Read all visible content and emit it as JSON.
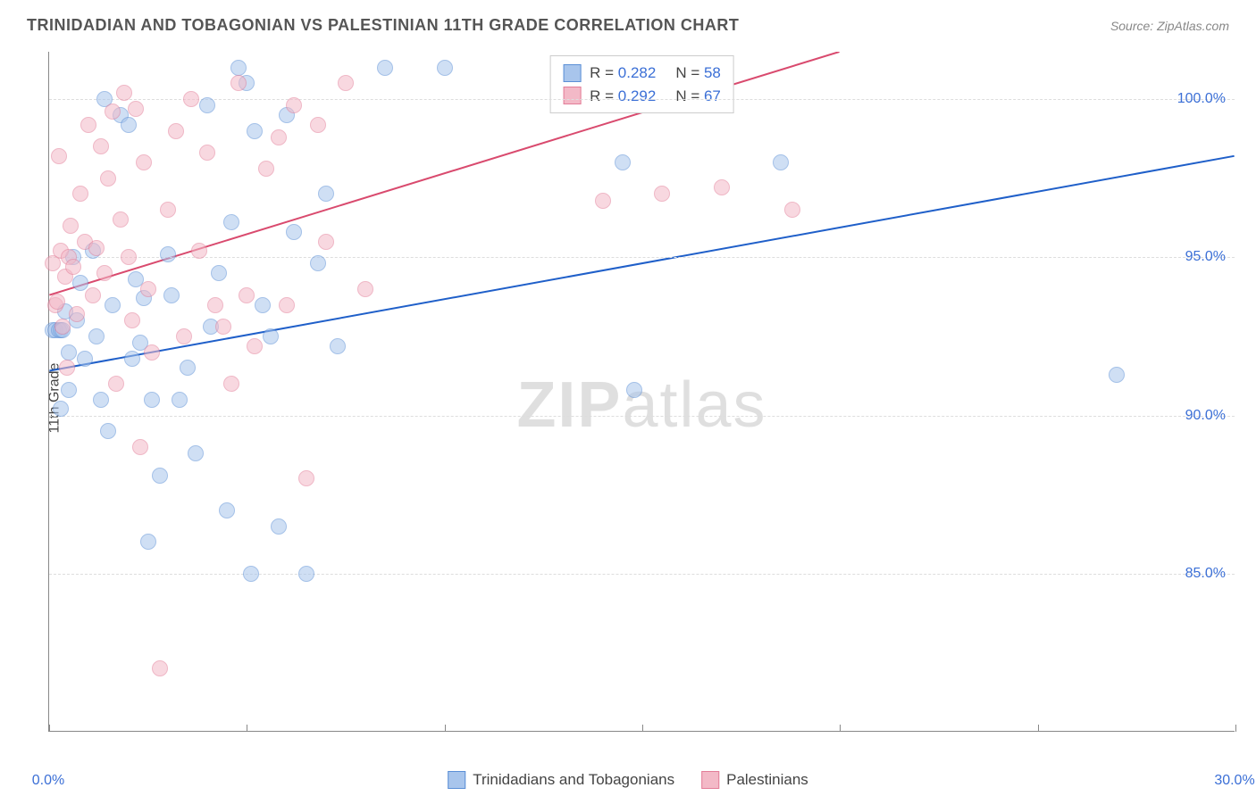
{
  "title": "TRINIDADIAN AND TOBAGONIAN VS PALESTINIAN 11TH GRADE CORRELATION CHART",
  "source": "Source: ZipAtlas.com",
  "ylabel": "11th Grade",
  "watermark_bold": "ZIP",
  "watermark_rest": "atlas",
  "chart": {
    "type": "scatter",
    "xlim": [
      0,
      30
    ],
    "ylim": [
      80,
      101.5
    ],
    "xticks": [
      0,
      5,
      10,
      15,
      20,
      25,
      30
    ],
    "xtick_labels": {
      "0": "0.0%",
      "30": "30.0%"
    },
    "yticks": [
      85,
      90,
      95,
      100
    ],
    "ytick_labels": {
      "85": "85.0%",
      "90": "90.0%",
      "95": "95.0%",
      "100": "100.0%"
    },
    "grid_color": "#dddddd",
    "background_color": "#ffffff",
    "point_radius": 9,
    "point_opacity": 0.55,
    "series": [
      {
        "name": "Trinidadians and Tobagonians",
        "fill": "#a8c5ec",
        "stroke": "#5b8fd6",
        "regression": {
          "x1": 0,
          "y1": 91.4,
          "x2": 30,
          "y2": 98.2,
          "color": "#1f5fc9",
          "width": 2
        },
        "stats": {
          "R": "0.282",
          "N": "58"
        },
        "points": [
          [
            0.1,
            92.7
          ],
          [
            0.15,
            92.7
          ],
          [
            0.25,
            92.7
          ],
          [
            0.3,
            92.7
          ],
          [
            0.35,
            92.7
          ],
          [
            0.4,
            93.3
          ],
          [
            0.5,
            92.0
          ],
          [
            0.6,
            95.0
          ],
          [
            0.7,
            93.0
          ],
          [
            0.8,
            94.2
          ],
          [
            0.3,
            90.2
          ],
          [
            0.5,
            90.8
          ],
          [
            0.9,
            91.8
          ],
          [
            1.1,
            95.2
          ],
          [
            1.2,
            92.5
          ],
          [
            1.3,
            90.5
          ],
          [
            1.4,
            100.0
          ],
          [
            1.5,
            89.5
          ],
          [
            1.6,
            93.5
          ],
          [
            1.8,
            99.5
          ],
          [
            2.0,
            99.2
          ],
          [
            2.1,
            91.8
          ],
          [
            2.2,
            94.3
          ],
          [
            2.3,
            92.3
          ],
          [
            2.4,
            93.7
          ],
          [
            2.5,
            86.0
          ],
          [
            2.6,
            90.5
          ],
          [
            2.8,
            88.1
          ],
          [
            3.0,
            95.1
          ],
          [
            3.1,
            93.8
          ],
          [
            3.3,
            90.5
          ],
          [
            3.5,
            91.5
          ],
          [
            3.7,
            88.8
          ],
          [
            4.0,
            99.8
          ],
          [
            4.1,
            92.8
          ],
          [
            4.3,
            94.5
          ],
          [
            4.5,
            87.0
          ],
          [
            4.6,
            96.1
          ],
          [
            4.8,
            101.0
          ],
          [
            5.0,
            100.5
          ],
          [
            5.1,
            85.0
          ],
          [
            5.2,
            99.0
          ],
          [
            5.4,
            93.5
          ],
          [
            5.6,
            92.5
          ],
          [
            5.8,
            86.5
          ],
          [
            6.0,
            99.5
          ],
          [
            6.2,
            95.8
          ],
          [
            6.5,
            85.0
          ],
          [
            6.8,
            94.8
          ],
          [
            7.0,
            97.0
          ],
          [
            7.3,
            92.2
          ],
          [
            8.5,
            101.0
          ],
          [
            10.0,
            101.0
          ],
          [
            14.5,
            98.0
          ],
          [
            14.8,
            90.8
          ],
          [
            18.5,
            98.0
          ],
          [
            27.0,
            91.3
          ]
        ]
      },
      {
        "name": "Palestinians",
        "fill": "#f3b9c7",
        "stroke": "#e37d98",
        "regression": {
          "x1": 0,
          "y1": 93.8,
          "x2": 20,
          "y2": 101.5,
          "color": "#d94a6e",
          "width": 2
        },
        "stats": {
          "R": "0.292",
          "N": "67"
        },
        "points": [
          [
            0.1,
            94.8
          ],
          [
            0.15,
            93.5
          ],
          [
            0.2,
            93.6
          ],
          [
            0.25,
            98.2
          ],
          [
            0.3,
            95.2
          ],
          [
            0.35,
            92.8
          ],
          [
            0.4,
            94.4
          ],
          [
            0.45,
            91.5
          ],
          [
            0.5,
            95.0
          ],
          [
            0.55,
            96.0
          ],
          [
            0.6,
            94.7
          ],
          [
            0.7,
            93.2
          ],
          [
            0.8,
            97.0
          ],
          [
            0.9,
            95.5
          ],
          [
            1.0,
            99.2
          ],
          [
            1.1,
            93.8
          ],
          [
            1.2,
            95.3
          ],
          [
            1.3,
            98.5
          ],
          [
            1.4,
            94.5
          ],
          [
            1.5,
            97.5
          ],
          [
            1.6,
            99.6
          ],
          [
            1.7,
            91.0
          ],
          [
            1.8,
            96.2
          ],
          [
            1.9,
            100.2
          ],
          [
            2.0,
            95.0
          ],
          [
            2.1,
            93.0
          ],
          [
            2.2,
            99.7
          ],
          [
            2.3,
            89.0
          ],
          [
            2.4,
            98.0
          ],
          [
            2.5,
            94.0
          ],
          [
            2.6,
            92.0
          ],
          [
            2.8,
            82.0
          ],
          [
            3.0,
            96.5
          ],
          [
            3.2,
            99.0
          ],
          [
            3.4,
            92.5
          ],
          [
            3.6,
            100.0
          ],
          [
            3.8,
            95.2
          ],
          [
            4.0,
            98.3
          ],
          [
            4.2,
            93.5
          ],
          [
            4.4,
            92.8
          ],
          [
            4.6,
            91.0
          ],
          [
            4.8,
            100.5
          ],
          [
            5.0,
            93.8
          ],
          [
            5.2,
            92.2
          ],
          [
            5.5,
            97.8
          ],
          [
            5.8,
            98.8
          ],
          [
            6.0,
            93.5
          ],
          [
            6.2,
            99.8
          ],
          [
            6.5,
            88.0
          ],
          [
            6.8,
            99.2
          ],
          [
            7.0,
            95.5
          ],
          [
            7.5,
            100.5
          ],
          [
            8.0,
            94.0
          ],
          [
            14.0,
            96.8
          ],
          [
            15.5,
            97.0
          ],
          [
            17.0,
            97.2
          ],
          [
            18.8,
            96.5
          ]
        ]
      }
    ]
  },
  "stats_labels": {
    "R": "R =",
    "N": "N ="
  },
  "legend": {
    "series1": "Trinidadians and Tobagonians",
    "series2": "Palestinians"
  }
}
